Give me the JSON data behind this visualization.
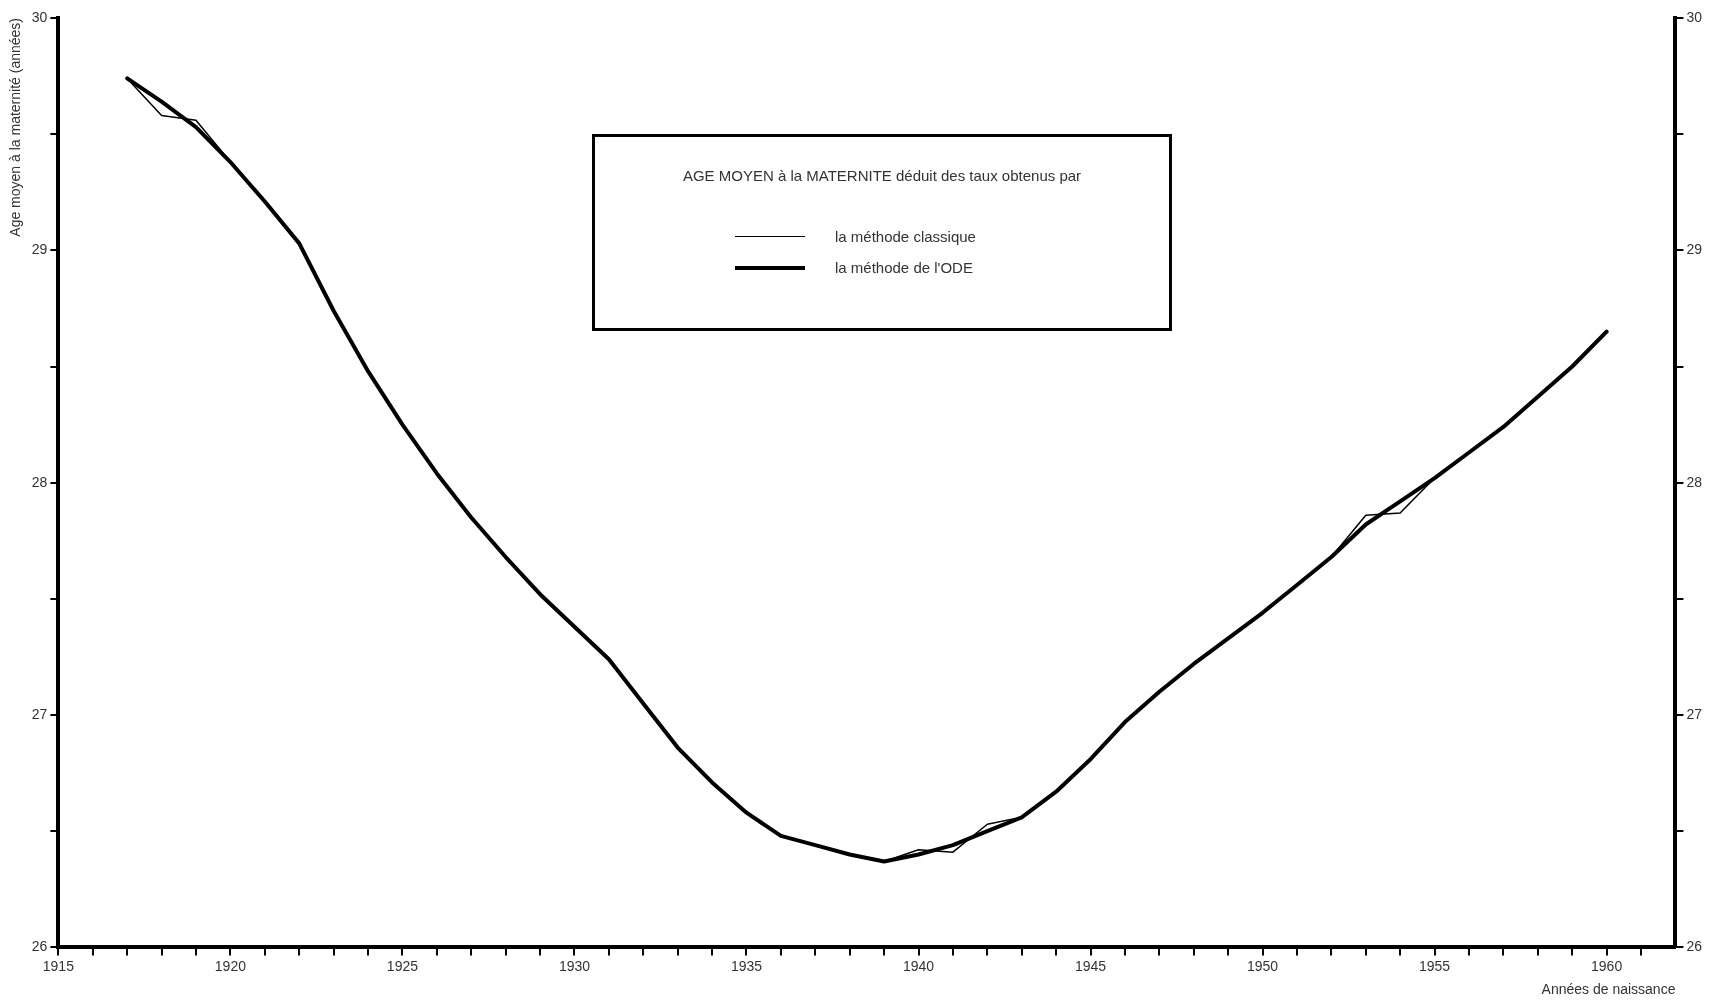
{
  "chart_data": {
    "type": "line",
    "xlabel": "Années de naissance",
    "ylabel": "Age moyen à la maternité (années)",
    "legend_title": "AGE MOYEN à la MATERNITE déduit des taux obtenus par",
    "legend": "top",
    "grid": false,
    "marker": "none",
    "line_style": "solid",
    "x": [
      1917,
      1918,
      1919,
      1920,
      1921,
      1922,
      1923,
      1924,
      1925,
      1926,
      1927,
      1928,
      1929,
      1930,
      1931,
      1932,
      1933,
      1934,
      1935,
      1936,
      1937,
      1938,
      1939,
      1940,
      1941,
      1942,
      1943,
      1944,
      1945,
      1946,
      1947,
      1948,
      1949,
      1950,
      1951,
      1952,
      1953,
      1954,
      1955,
      1956,
      1957,
      1958,
      1959,
      1960
    ],
    "series": [
      {
        "name": "la méthode classique",
        "color": "#000000",
        "values": [
          29.74,
          29.58,
          29.56,
          29.38,
          29.21,
          29.03,
          28.74,
          28.48,
          28.25,
          28.04,
          27.85,
          27.68,
          27.52,
          27.38,
          27.24,
          27.05,
          26.86,
          26.71,
          26.58,
          26.48,
          26.44,
          26.4,
          26.37,
          26.42,
          26.41,
          26.53,
          26.56,
          26.67,
          26.81,
          26.97,
          27.1,
          27.22,
          27.33,
          27.44,
          27.56,
          27.68,
          27.86,
          27.87,
          28.02,
          28.13,
          28.24,
          28.37,
          28.5,
          28.65
        ]
      },
      {
        "name": "la méthode de l'ODE",
        "color": "#000000",
        "values": [
          29.74,
          29.64,
          29.53,
          29.38,
          29.21,
          29.03,
          28.74,
          28.48,
          28.25,
          28.04,
          27.85,
          27.68,
          27.52,
          27.38,
          27.24,
          27.05,
          26.86,
          26.71,
          26.58,
          26.48,
          26.44,
          26.4,
          26.37,
          26.4,
          26.44,
          26.5,
          26.56,
          26.67,
          26.81,
          26.97,
          27.1,
          27.22,
          27.33,
          27.44,
          27.56,
          27.68,
          27.82,
          27.92,
          28.02,
          28.13,
          28.24,
          28.37,
          28.5,
          28.65
        ]
      }
    ],
    "xlim": [
      1915,
      1962
    ],
    "xticks": [
      1915,
      {
        "value": 1916,
        "label": null
      },
      {
        "value": 1917,
        "label": null
      },
      {
        "value": 1918,
        "label": null
      },
      {
        "value": 1919,
        "label": null
      },
      1920,
      {
        "value": 1921,
        "label": null
      },
      {
        "value": 1922,
        "label": null
      },
      {
        "value": 1923,
        "label": null
      },
      {
        "value": 1924,
        "label": null
      },
      1925,
      {
        "value": 1926,
        "label": null
      },
      {
        "value": 1927,
        "label": null
      },
      {
        "value": 1928,
        "label": null
      },
      {
        "value": 1929,
        "label": null
      },
      1930,
      {
        "value": 1931,
        "label": null
      },
      {
        "value": 1932,
        "label": null
      },
      {
        "value": 1933,
        "label": null
      },
      {
        "value": 1934,
        "label": null
      },
      1935,
      {
        "value": 1936,
        "label": null
      },
      {
        "value": 1937,
        "label": null
      },
      {
        "value": 1938,
        "label": null
      },
      {
        "value": 1939,
        "label": null
      },
      1940,
      {
        "value": 1941,
        "label": null
      },
      {
        "value": 1942,
        "label": null
      },
      {
        "value": 1943,
        "label": null
      },
      {
        "value": 1944,
        "label": null
      },
      1945,
      {
        "value": 1946,
        "label": null
      },
      {
        "value": 1947,
        "label": null
      },
      {
        "value": 1948,
        "label": null
      },
      {
        "value": 1949,
        "label": null
      },
      1950,
      {
        "value": 1951,
        "label": null
      },
      {
        "value": 1952,
        "label": null
      },
      {
        "value": 1953,
        "label": null
      },
      {
        "value": 1954,
        "label": null
      },
      1955,
      {
        "value": 1956,
        "label": null
      },
      {
        "value": 1957,
        "label": null
      },
      {
        "value": 1958,
        "label": null
      },
      {
        "value": 1959,
        "label": null
      },
      1960,
      {
        "value": 1961,
        "label": null
      }
    ],
    "ylim": [
      26,
      30
    ],
    "yticks": [
      26,
      {
        "value": 26.5,
        "label": null
      },
      27,
      {
        "value": 27.5,
        "label": null
      },
      28,
      {
        "value": 28.5,
        "label": null
      },
      29,
      {
        "value": 29.5,
        "label": null
      },
      30
    ],
    "y2lim": [
      26,
      30
    ],
    "y2ticks": [
      26,
      {
        "value": 26.5,
        "label": null
      },
      27,
      {
        "value": 27.5,
        "label": null
      },
      28,
      {
        "value": 28.5,
        "label": null
      },
      29,
      {
        "value": 29.5,
        "label": null
      },
      30
    ]
  }
}
